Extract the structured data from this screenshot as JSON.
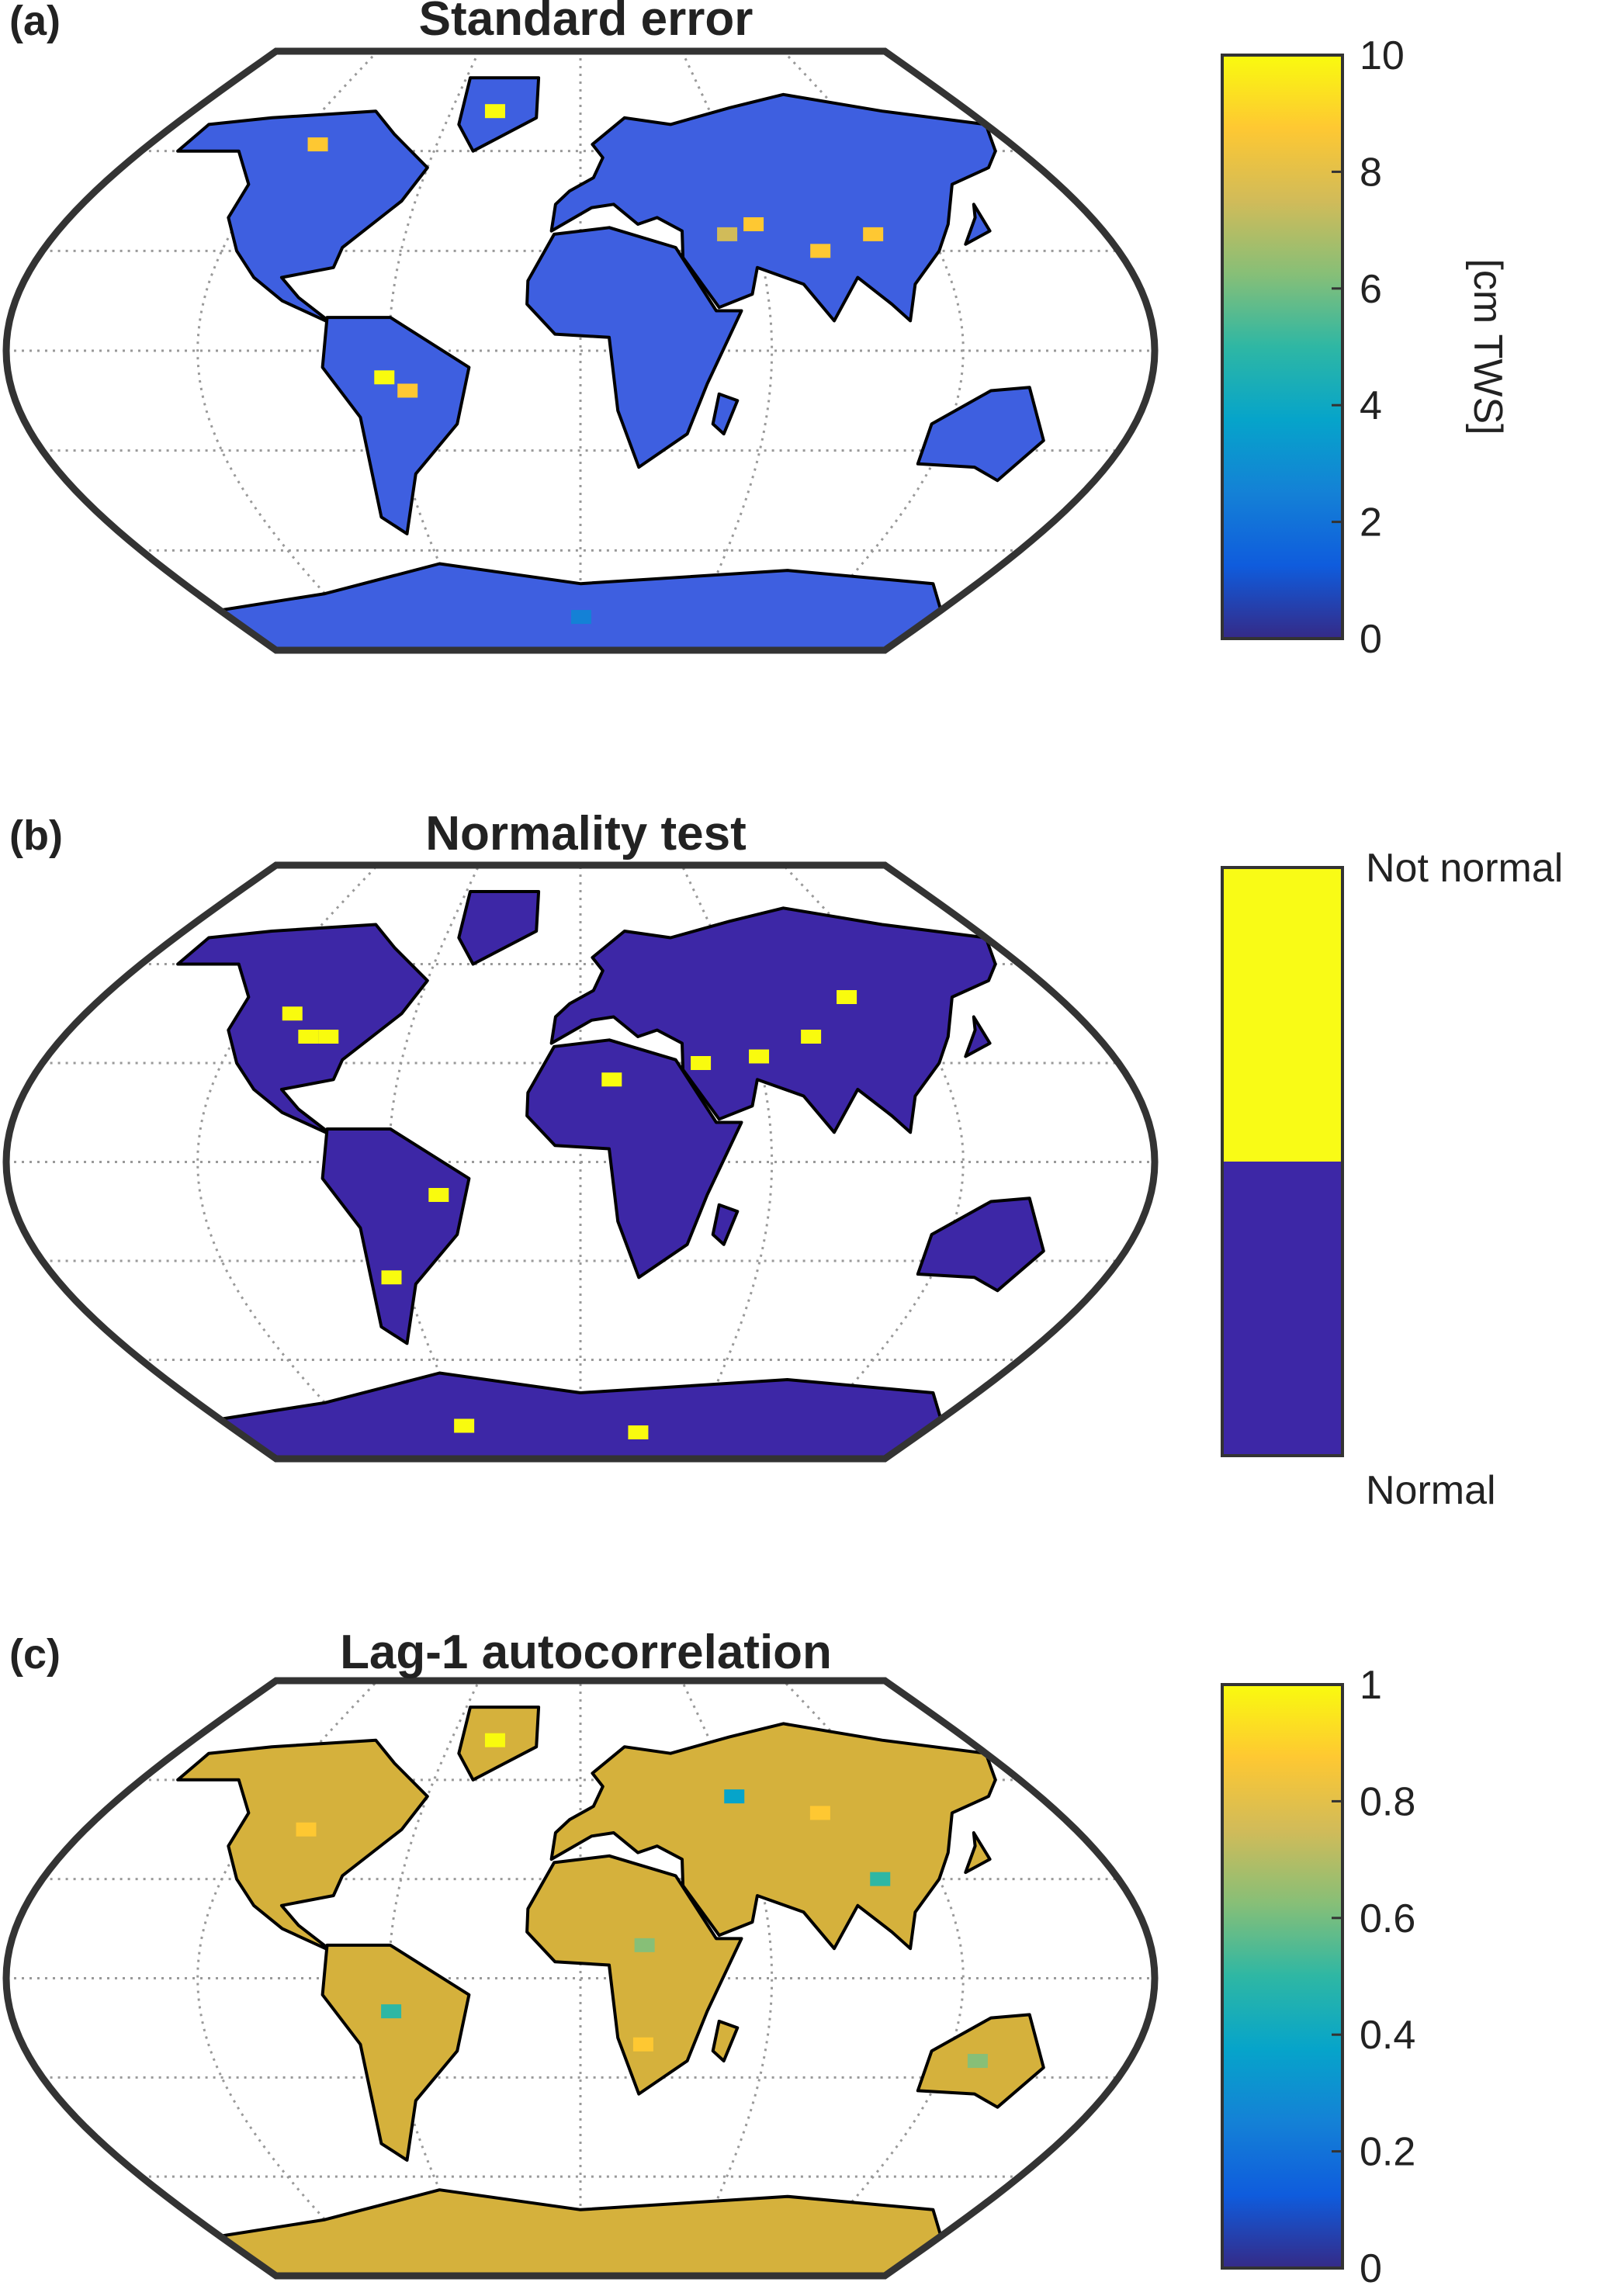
{
  "chart_data": [
    {
      "type": "heatmap",
      "panel_label": "(a)",
      "title": "Standard error",
      "colorbar": {
        "ticks": [
          "0",
          "2",
          "4",
          "6",
          "8",
          "10"
        ],
        "range": [
          0,
          10
        ],
        "label": "[cm TWS]"
      },
      "land_color": "#3e5fe0"
    },
    {
      "type": "heatmap",
      "panel_label": "(b)",
      "title": "Normality test",
      "colorbar": {
        "categories": [
          "Normal",
          "Not normal"
        ],
        "colors": [
          "#3d27a6",
          "#f9fb16"
        ]
      },
      "land_color": "#3d27a6"
    },
    {
      "type": "heatmap",
      "panel_label": "(c)",
      "title": "Lag-1 autocorrelation",
      "colorbar": {
        "ticks": [
          "0",
          "0.2",
          "0.4",
          "0.6",
          "0.8",
          "1"
        ],
        "range": [
          0,
          1
        ],
        "label": ""
      },
      "land_color": "#d5b13c"
    }
  ],
  "colormap": [
    "#352a87",
    "#0f5cdd",
    "#1481d6",
    "#06a4ca",
    "#2eb7a4",
    "#87bf77",
    "#d1bb59",
    "#fec832",
    "#f9fb0e"
  ]
}
